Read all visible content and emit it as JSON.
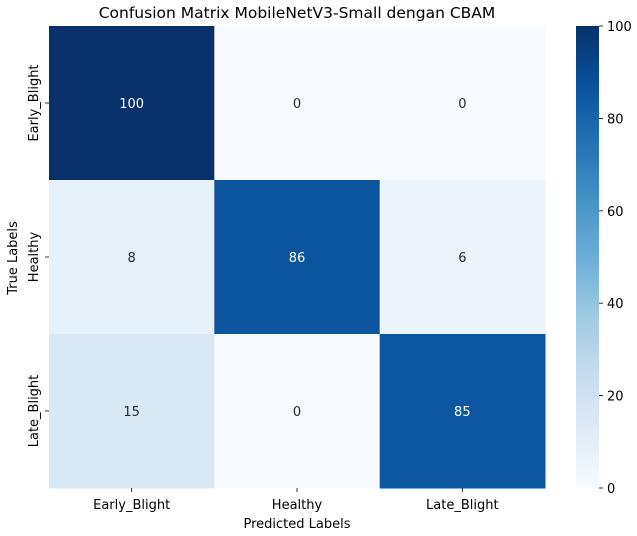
{
  "chart_data": {
    "type": "heatmap",
    "title": "Confusion Matrix MobileNetV3-Small dengan CBAM",
    "xlabel": "Predicted Labels",
    "ylabel": "True Labels",
    "x_categories": [
      "Early_Blight",
      "Healthy",
      "Late_Blight"
    ],
    "y_categories": [
      "Early_Blight",
      "Healthy",
      "Late_Blight"
    ],
    "values": [
      [
        100,
        0,
        0
      ],
      [
        8,
        86,
        6
      ],
      [
        15,
        0,
        85
      ]
    ],
    "colormap": "Blues",
    "vmin": 0,
    "vmax": 100,
    "colorbar_ticks": [
      "0",
      "20",
      "40",
      "60",
      "80",
      "100"
    ],
    "colors": {
      "low": "#f7fbff",
      "high": "#08306b",
      "text_dark": "#262626",
      "text_light": "#ffffff"
    }
  }
}
